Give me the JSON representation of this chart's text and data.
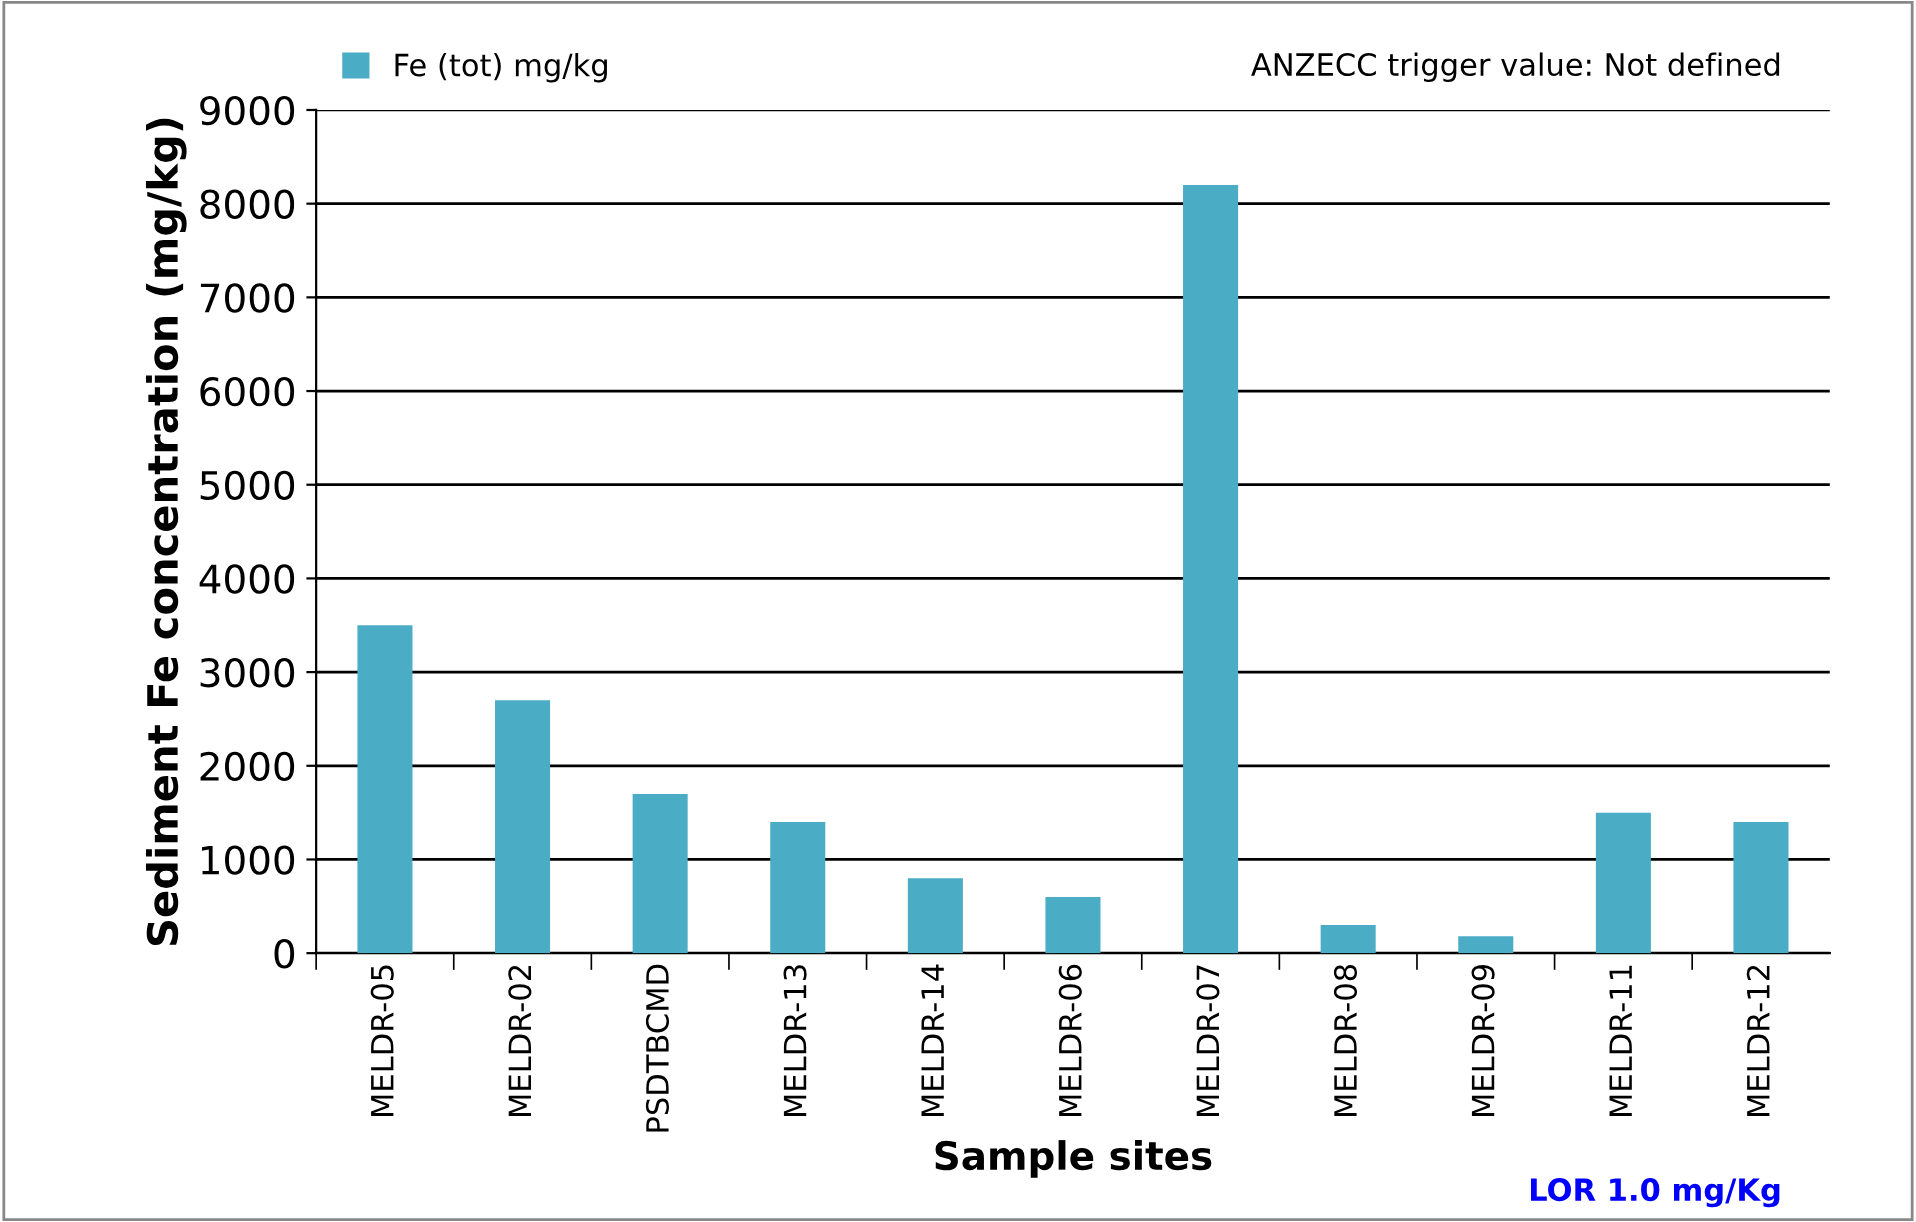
{
  "chart_data": {
    "type": "bar",
    "xlabel": "Sample sites",
    "ylabel": "Sediment Fe concentration (mg/kg)",
    "categories": [
      "MELDR-05",
      "MELDR-02",
      "PSDTBCMD",
      "MELDR-13",
      "MELDR-14",
      "MELDR-06",
      "MELDR-07",
      "MELDR-08",
      "MELDR-09",
      "MELDR-11",
      "MELDR-12"
    ],
    "series": [
      {
        "name": "Fe (tot) mg/kg",
        "color": "#4bacc6",
        "values": [
          3500,
          2700,
          1700,
          1400,
          800,
          600,
          8200,
          300,
          180,
          1500,
          1400
        ]
      }
    ],
    "ylim": [
      0,
      9000
    ],
    "yticks": [
      0,
      1000,
      2000,
      3000,
      4000,
      5000,
      6000,
      7000,
      8000,
      9000
    ],
    "grid": "y",
    "legend": "top left",
    "annotations": [
      "ANZECC trigger value: Not defined",
      "LOR 1.0 mg/Kg"
    ]
  }
}
